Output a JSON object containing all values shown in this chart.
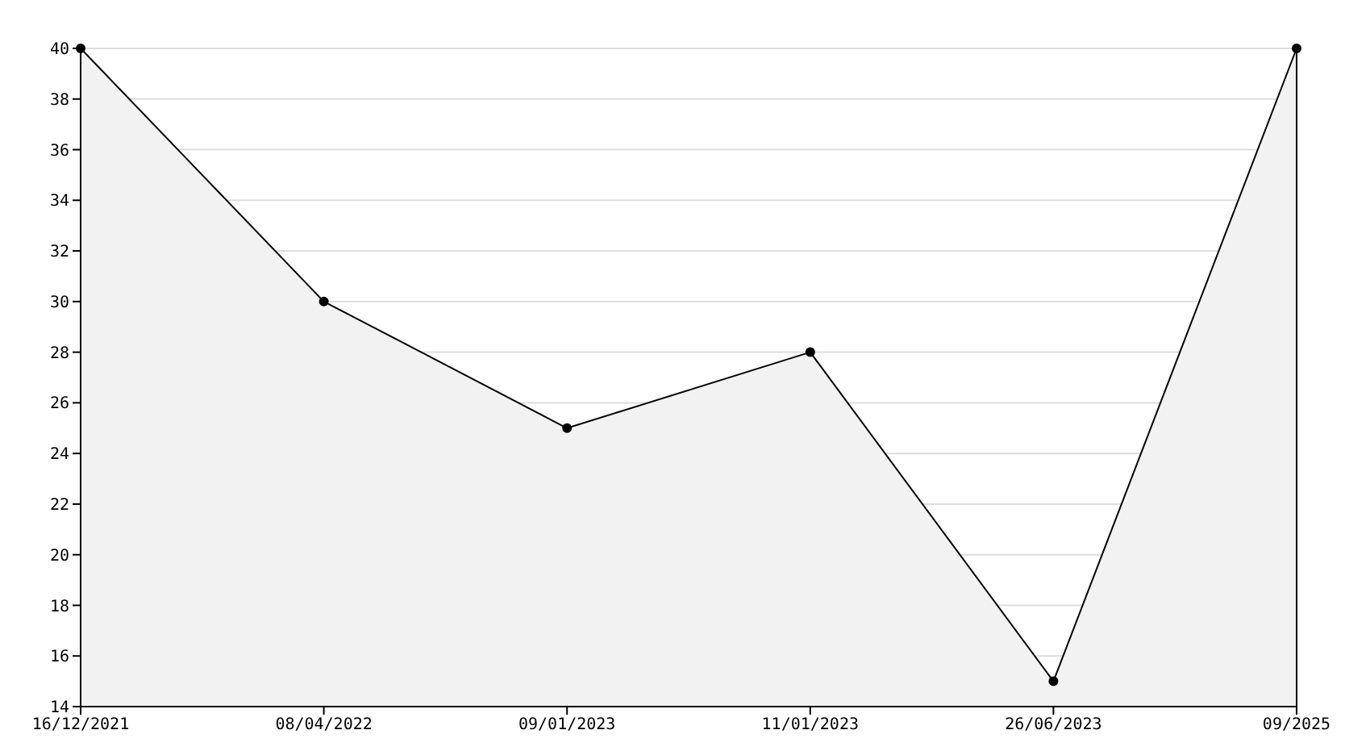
{
  "chart_data": {
    "type": "area",
    "categories": [
      "16/12/2021",
      "08/04/2022",
      "09/01/2023",
      "11/01/2023",
      "26/06/2023",
      "09/2025"
    ],
    "series": [
      {
        "color": "#000000",
        "values": [
          40,
          30,
          25,
          28,
          15,
          40
        ]
      }
    ],
    "ylim": [
      14,
      40
    ],
    "yticks": [
      14,
      16,
      18,
      20,
      22,
      24,
      26,
      28,
      30,
      32,
      34,
      36,
      38,
      40
    ],
    "grid": "y",
    "marker": "circle"
  }
}
